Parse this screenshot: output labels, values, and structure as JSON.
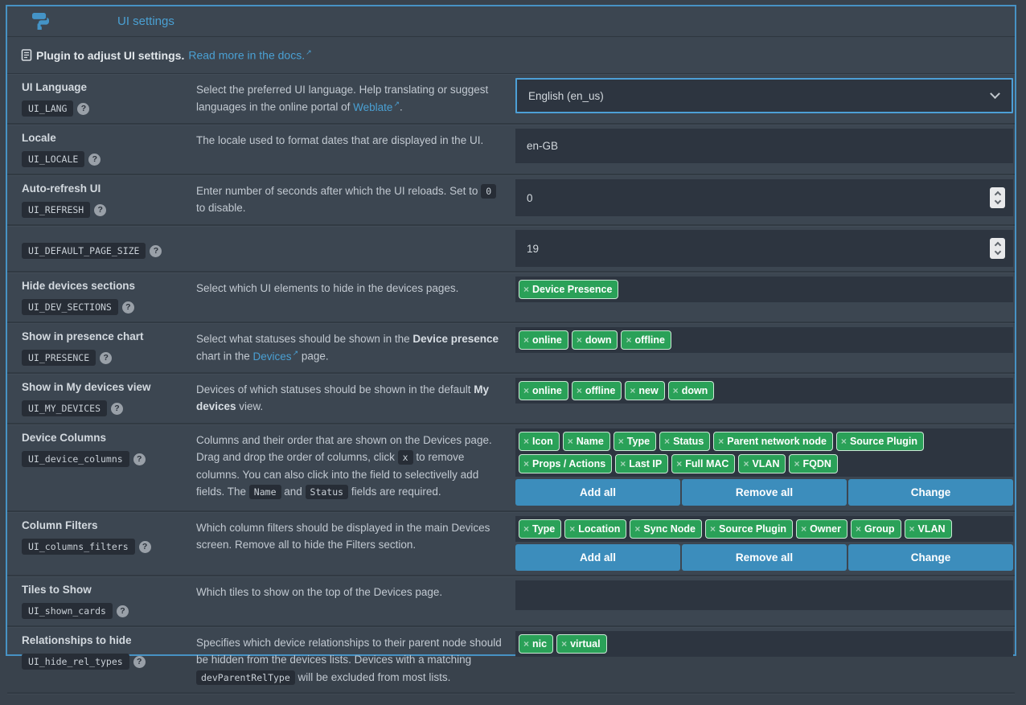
{
  "colors": {
    "accent_blue": "#3c8dbc",
    "link_blue": "#4aa0d3",
    "tag_green": "#2aa158",
    "panel_border": "#4792c4",
    "input_background": "#2d3540"
  },
  "icons": {
    "help": "?",
    "external": "↗",
    "remove": "×",
    "paint_roller": "paint-roller-icon",
    "docs": "docs-icon",
    "chevron_down": "chevron-down-icon"
  },
  "header": {
    "title": "UI settings"
  },
  "info": {
    "prefix": "Plugin to adjust UI settings.",
    "link": "Read more in the docs."
  },
  "buttons": {
    "add_all": "Add all",
    "remove_all": "Remove all",
    "change": "Change"
  },
  "rows": [
    {
      "label": "UI Language",
      "code": "UI_LANG",
      "description": [
        {
          "t": "text",
          "v": "Select the preferred UI language. Help translating or suggest languages in the online portal of "
        },
        {
          "t": "link",
          "v": "Weblate",
          "name": "weblate-link"
        },
        {
          "t": "text",
          "v": "."
        }
      ],
      "control": {
        "type": "select",
        "value": "English (en_us)"
      }
    },
    {
      "label": "Locale",
      "code": "UI_LOCALE",
      "description": [
        {
          "t": "text",
          "v": "The locale used to format dates that are displayed in the UI."
        }
      ],
      "control": {
        "type": "text",
        "value": "en-GB"
      }
    },
    {
      "label": "Auto-refresh UI",
      "code": "UI_REFRESH",
      "description": [
        {
          "t": "text",
          "v": "Enter number of seconds after which the UI reloads. Set to "
        },
        {
          "t": "code",
          "v": "0"
        },
        {
          "t": "text",
          "v": " to disable."
        }
      ],
      "control": {
        "type": "number",
        "value": "0"
      }
    },
    {
      "label": "",
      "code": "UI_DEFAULT_PAGE_SIZE",
      "description": [],
      "control": {
        "type": "number",
        "value": "19"
      }
    },
    {
      "label": "Hide devices sections",
      "code": "UI_DEV_SECTIONS",
      "description": [
        {
          "t": "text",
          "v": "Select which UI elements to hide in the devices pages."
        }
      ],
      "control": {
        "type": "tags",
        "items": [
          "Device Presence"
        ]
      }
    },
    {
      "label": "Show in presence chart",
      "code": "UI_PRESENCE",
      "description": [
        {
          "t": "text",
          "v": "Select what statuses should be shown in the "
        },
        {
          "t": "bold",
          "v": "Device presence"
        },
        {
          "t": "text",
          "v": " chart in the "
        },
        {
          "t": "link",
          "v": "Devices",
          "name": "devices-link"
        },
        {
          "t": "text",
          "v": " page."
        }
      ],
      "control": {
        "type": "tags",
        "items": [
          "online",
          "down",
          "offline"
        ]
      }
    },
    {
      "label": "Show in My devices view",
      "code": "UI_MY_DEVICES",
      "description": [
        {
          "t": "text",
          "v": "Devices of which statuses should be shown in the default "
        },
        {
          "t": "bold",
          "v": "My devices"
        },
        {
          "t": "text",
          "v": " view."
        }
      ],
      "control": {
        "type": "tags",
        "items": [
          "online",
          "offline",
          "new",
          "down"
        ]
      }
    },
    {
      "label": "Device Columns",
      "code": "UI_device_columns",
      "description": [
        {
          "t": "text",
          "v": "Columns and their order that are shown on the Devices page. Drag and drop the order of columns, click "
        },
        {
          "t": "code",
          "v": "x"
        },
        {
          "t": "text",
          "v": " to remove columns. You can also click into the field to selectivelly add fields. The "
        },
        {
          "t": "code",
          "v": "Name"
        },
        {
          "t": "text",
          "v": " and "
        },
        {
          "t": "code",
          "v": "Status"
        },
        {
          "t": "text",
          "v": " fields are required."
        }
      ],
      "control": {
        "type": "tags",
        "items": [
          "Icon",
          "Name",
          "Type",
          "Status",
          "Parent network node",
          "Source Plugin",
          "Props / Actions",
          "Last IP",
          "Full MAC",
          "VLAN",
          "FQDN"
        ],
        "buttons": [
          "Add all",
          "Remove all",
          "Change"
        ]
      }
    },
    {
      "label": "Column Filters",
      "code": "UI_columns_filters",
      "description": [
        {
          "t": "text",
          "v": "Which column filters should be displayed in the main Devices screen. Remove all to hide the Filters section."
        }
      ],
      "control": {
        "type": "tags",
        "items": [
          "Type",
          "Location",
          "Sync Node",
          "Source Plugin",
          "Owner",
          "Group",
          "VLAN"
        ],
        "buttons": [
          "Add all",
          "Remove all",
          "Change"
        ]
      }
    },
    {
      "label": "Tiles to Show",
      "code": "UI_shown_cards",
      "description": [
        {
          "t": "text",
          "v": "Which tiles to show on the top of the Devices page."
        }
      ],
      "control": {
        "type": "empty"
      }
    },
    {
      "label": "Relationships to hide",
      "code": "UI_hide_rel_types",
      "description": [
        {
          "t": "text",
          "v": "Specifies which device relationships to their parent node should be hidden from the devices lists. Devices with a matching "
        },
        {
          "t": "code",
          "v": "devParentRelType"
        },
        {
          "t": "text",
          "v": " will be excluded from most lists."
        }
      ],
      "control": {
        "type": "tags",
        "items": [
          "nic",
          "virtual"
        ]
      }
    }
  ]
}
